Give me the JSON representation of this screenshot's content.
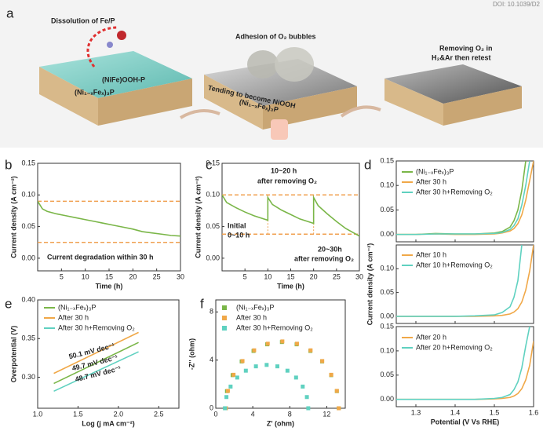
{
  "diagram": {
    "panel": "a",
    "doi": "DOI: 10.1039/D2",
    "step1_caption": "Dissolution of Fe/P",
    "step1_layer_top": "(NiFe)OOH-P",
    "step1_layer_base": "(Ni₁₋ₓFeₓ)₃P",
    "step2_caption": "Adhesion of O₂ bubbles",
    "step2_layer_top": "Tending to become NiOOH",
    "step2_layer_base": "(Ni₁₋ₓFeₓ)₃P",
    "step3_caption_1": "Removing O₂ in",
    "step3_caption_2": "H₂&Ar then retest"
  },
  "chart_data": [
    {
      "type": "line",
      "panel": "b",
      "xlabel": "Time (h)",
      "ylabel": "Current density (A cm⁻²)",
      "xlim": [
        0,
        30
      ],
      "xticks": [
        5,
        10,
        15,
        20,
        25,
        30
      ],
      "ylim": [
        -0.02,
        0.15
      ],
      "yticks": [
        {
          "value": 0,
          "label": "0.00"
        },
        0.05,
        {
          "value": 0.1,
          "label": "0.10"
        },
        0.15
      ],
      "hlines": [
        0.09,
        0.025
      ],
      "ref_color": "#f0a050",
      "x": [
        0,
        1,
        2,
        4,
        6,
        8,
        10,
        12,
        14,
        16,
        18,
        20,
        22,
        24,
        26,
        28,
        30
      ],
      "series": [
        {
          "name": null,
          "color": "#7ab648",
          "values": [
            0.09,
            0.078,
            0.074,
            0.07,
            0.067,
            0.064,
            0.061,
            0.058,
            0.055,
            0.052,
            0.049,
            0.046,
            0.042,
            0.04,
            0.038,
            0.036,
            0.035
          ]
        }
      ],
      "annotations": [
        "Current degradation within 30 h"
      ]
    },
    {
      "type": "line",
      "panel": "c",
      "xlabel": "Time (h)",
      "ylabel": "Current density (A cm⁻²)",
      "xlim": [
        0,
        30
      ],
      "xticks": [
        5,
        10,
        15,
        20,
        25,
        30
      ],
      "ylim": [
        -0.02,
        0.15
      ],
      "yticks": [
        {
          "value": 0,
          "label": "0.00"
        },
        0.05,
        {
          "value": 0.1,
          "label": "0.10"
        },
        0.15
      ],
      "hlines": [
        0.1,
        0.038
      ],
      "vlines": [
        10,
        20
      ],
      "ref_color": "#f0a050",
      "x": [
        0,
        1,
        3,
        5,
        7,
        10,
        10,
        11,
        13,
        15,
        17,
        20,
        20,
        21,
        23,
        25,
        27,
        30
      ],
      "series": [
        {
          "name": null,
          "color": "#7ab648",
          "values": [
            0.1,
            0.088,
            0.08,
            0.073,
            0.067,
            0.06,
            0.096,
            0.085,
            0.076,
            0.069,
            0.062,
            0.055,
            0.096,
            0.083,
            0.07,
            0.058,
            0.047,
            0.035
          ]
        }
      ],
      "annotations": [
        "10~20 h",
        "after removing O₂",
        "Initial",
        "0~10 h",
        "20~30h",
        "after removing O₂"
      ]
    },
    {
      "type": "line",
      "panel": "d",
      "ylabel": "Current density (A cm⁻²)",
      "xlim": [
        1.25,
        1.6
      ],
      "xticks": [
        1.3,
        1.4,
        1.5,
        1.6
      ],
      "ylim": [
        -0.015,
        0.15
      ],
      "yticks": [
        {
          "value": 0,
          "label": "0.00"
        },
        0.05,
        {
          "value": 0.1,
          "label": "0.10"
        },
        0.15
      ],
      "x": [
        1.25,
        1.3,
        1.35,
        1.4,
        1.45,
        1.5,
        1.52,
        1.54,
        1.55,
        1.56,
        1.57,
        1.58,
        1.59,
        1.6
      ],
      "series": [
        {
          "name": "(Ni₁₋ₓFeₓ)₃P",
          "color": "#7ab648",
          "values": [
            0,
            0,
            0.002,
            0.001,
            0.001,
            0.003,
            0.006,
            0.015,
            0.028,
            0.05,
            0.09,
            0.15,
            null,
            null
          ]
        },
        {
          "name": "After 30 h",
          "color": "#f0a848",
          "values": [
            0,
            0,
            0.001,
            0,
            0,
            0.001,
            0.003,
            0.007,
            0.012,
            0.022,
            0.04,
            0.07,
            0.11,
            0.15
          ]
        },
        {
          "name": "After 30 h+Removing O₂",
          "color": "#5fd1c0",
          "values": [
            0,
            0,
            0.001,
            0.001,
            0.001,
            0.002,
            0.004,
            0.01,
            0.018,
            0.032,
            0.06,
            0.1,
            0.15,
            null
          ]
        }
      ]
    },
    {
      "type": "line",
      "xlim": [
        1.25,
        1.6
      ],
      "xticks": [
        1.3,
        1.4,
        1.5,
        1.6
      ],
      "ylim": [
        -0.015,
        0.15
      ],
      "yticks": [
        {
          "value": 0,
          "label": "0.00"
        },
        0.05,
        {
          "value": 0.1,
          "label": "0.10"
        }
      ],
      "x": [
        1.25,
        1.3,
        1.35,
        1.4,
        1.45,
        1.5,
        1.52,
        1.54,
        1.55,
        1.56,
        1.57,
        1.58,
        1.59,
        1.6
      ],
      "series": [
        {
          "name": "After 10 h",
          "color": "#f0a848",
          "values": [
            0,
            0,
            0,
            0,
            0,
            0.001,
            0.002,
            0.005,
            0.009,
            0.016,
            0.03,
            0.055,
            0.095,
            0.15
          ]
        },
        {
          "name": "After 10 h+Removing O₂",
          "color": "#5fd1c0",
          "values": [
            0,
            0,
            0,
            0,
            0.001,
            0.003,
            0.008,
            0.02,
            0.04,
            0.075,
            0.15,
            null,
            null,
            null
          ]
        }
      ]
    },
    {
      "type": "line",
      "xlabel": "Potential (V Vs RHE)",
      "xlim": [
        1.25,
        1.6
      ],
      "xticks": [
        1.3,
        1.4,
        1.5,
        1.6
      ],
      "ylim": [
        -0.015,
        0.15
      ],
      "yticks": [
        {
          "value": 0,
          "label": "0.00"
        },
        0.05,
        {
          "value": 0.1,
          "label": "0.10"
        },
        0.15
      ],
      "x": [
        1.25,
        1.3,
        1.35,
        1.4,
        1.45,
        1.5,
        1.52,
        1.54,
        1.55,
        1.56,
        1.57,
        1.58,
        1.59,
        1.6
      ],
      "series": [
        {
          "name": "After 20 h",
          "color": "#f0a848",
          "values": [
            0,
            0,
            0,
            0,
            0,
            0.001,
            0.002,
            0.004,
            0.007,
            0.012,
            0.022,
            0.04,
            0.07,
            0.12
          ]
        },
        {
          "name": "After 20 h+Removing O₂",
          "color": "#5fd1c0",
          "values": [
            0,
            0,
            0,
            0,
            0,
            0.002,
            0.004,
            0.01,
            0.02,
            0.036,
            0.065,
            0.11,
            0.15,
            null
          ]
        }
      ]
    },
    {
      "type": "line",
      "panel": "e",
      "xlabel": "Log (j mA cm⁻²)",
      "ylabel": "Overpotential (V)",
      "xlim": [
        1.0,
        2.75
      ],
      "xticks": [
        {
          "value": 1,
          "label": "1.0"
        },
        1.5,
        {
          "value": 2,
          "label": "2.0"
        },
        2.5
      ],
      "ylim": [
        0.26,
        0.4
      ],
      "yticks": [
        {
          "value": 0.3,
          "label": "0.30"
        },
        0.35,
        {
          "value": 0.4,
          "label": "0.40"
        }
      ],
      "x": [
        1.2,
        2.25
      ],
      "series": [
        {
          "name": "(Ni₁₋ₓFeₓ)₃P",
          "color": "#7ab648",
          "values": [
            0.292,
            0.345
          ]
        },
        {
          "name": "After 30 h",
          "color": "#f0a848",
          "values": [
            0.305,
            0.358
          ]
        },
        {
          "name": "After 30 h+Removing O₂",
          "color": "#5fd1c0",
          "values": [
            0.282,
            0.333
          ]
        }
      ],
      "annotations": [
        "50.1 mV dec⁻¹",
        "49.7 mV dec⁻¹",
        "48.7 mV dec⁻¹"
      ]
    },
    {
      "type": "scatter",
      "panel": "f",
      "xlabel": "Z' (ohm)",
      "ylabel": "-Z'' (ohm)",
      "xlim": [
        0,
        14
      ],
      "xticks": [
        0,
        4,
        8,
        12
      ],
      "ylim": [
        0,
        9
      ],
      "yticks": [
        0,
        4,
        8
      ],
      "series": [
        {
          "name": "(Ni₁₋ₓFeₓ)₃P",
          "color": "#7ab648",
          "x": [
            1.0,
            1.21,
            1.82,
            2.8,
            4.08,
            5.56,
            7.15,
            8.74,
            10.23,
            11.5,
            12.48,
            13.09,
            13.3
          ],
          "values": [
            0,
            1.42,
            2.75,
            3.89,
            4.76,
            5.31,
            5.5,
            5.31,
            4.76,
            3.89,
            2.75,
            1.42,
            0
          ]
        },
        {
          "name": "After 30 h",
          "color": "#f0a848",
          "x": [
            1.1,
            1.31,
            1.92,
            2.89,
            4.15,
            5.62,
            7.2,
            8.78,
            10.25,
            11.51,
            12.48,
            13.09,
            13.3
          ],
          "values": [
            0,
            1.44,
            2.78,
            3.92,
            4.81,
            5.36,
            5.55,
            5.36,
            4.81,
            3.92,
            2.78,
            1.44,
            0
          ]
        },
        {
          "name": "After 30 h+Removing O₂",
          "color": "#5fd1c0",
          "x": [
            1.0,
            1.15,
            1.6,
            2.32,
            3.25,
            4.34,
            5.5,
            6.66,
            7.75,
            8.68,
            9.4,
            9.85,
            10.0
          ],
          "values": [
            0,
            0.93,
            1.8,
            2.55,
            3.12,
            3.48,
            3.6,
            3.48,
            3.12,
            2.55,
            1.8,
            0.93,
            0
          ]
        }
      ]
    }
  ]
}
